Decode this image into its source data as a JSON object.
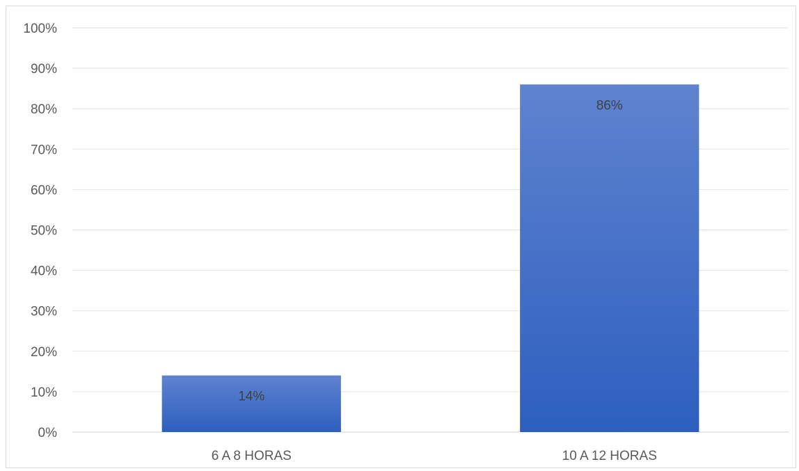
{
  "chart_data": {
    "type": "bar",
    "categories": [
      "6 A 8 HORAS",
      "10 A 12 HORAS"
    ],
    "values": [
      14,
      86
    ],
    "data_labels": [
      "14%",
      "86%"
    ],
    "ylim": [
      0,
      100
    ],
    "yticks": [
      0,
      10,
      20,
      30,
      40,
      50,
      60,
      70,
      80,
      90,
      100
    ],
    "ytick_labels": [
      "0%",
      "10%",
      "20%",
      "30%",
      "40%",
      "50%",
      "60%",
      "70%",
      "80%",
      "90%",
      "100%"
    ],
    "grid": true,
    "legend": "none",
    "title": "",
    "xlabel": "",
    "ylabel": "",
    "colors": {
      "bar_top": "#5f83cf",
      "bar_bottom": "#2d5fbf",
      "grid": "#e3e3e3",
      "axis": "#d0d0d0"
    }
  }
}
